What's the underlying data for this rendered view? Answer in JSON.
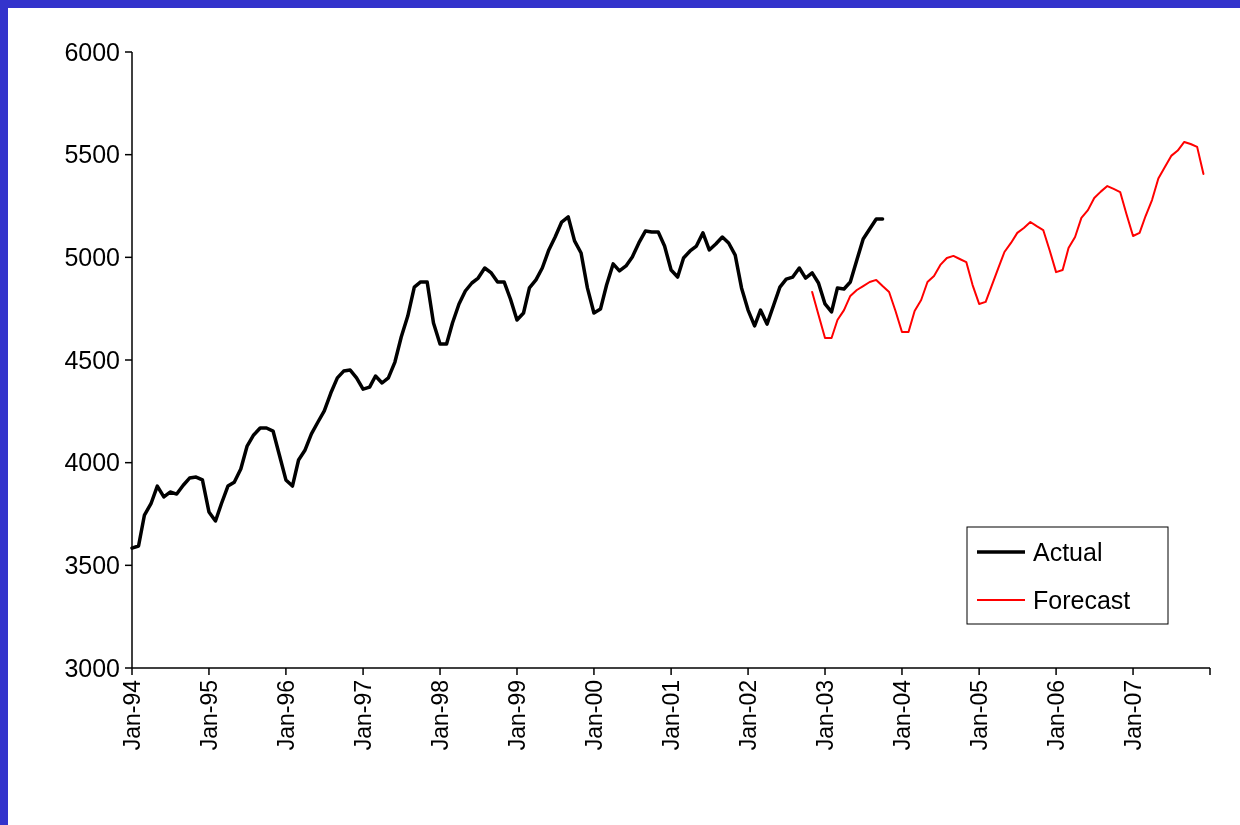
{
  "chart_data": {
    "type": "line",
    "xlim": [
      "1994-01",
      "2008-01"
    ],
    "xticks": [
      {
        "value": "1994-01",
        "label": "Jan-94"
      },
      {
        "value": "1995-01",
        "label": "Jan-95"
      },
      {
        "value": "1996-01",
        "label": "Jan-96"
      },
      {
        "value": "1997-01",
        "label": "Jan-97"
      },
      {
        "value": "1998-01",
        "label": "Jan-98"
      },
      {
        "value": "1999-01",
        "label": "Jan-99"
      },
      {
        "value": "2000-01",
        "label": "Jan-00"
      },
      {
        "value": "2001-01",
        "label": "Jan-01"
      },
      {
        "value": "2002-01",
        "label": "Jan-02"
      },
      {
        "value": "2003-01",
        "label": "Jan-03"
      },
      {
        "value": "2004-01",
        "label": "Jan-04"
      },
      {
        "value": "2005-01",
        "label": "Jan-05"
      },
      {
        "value": "2006-01",
        "label": "Jan-06"
      },
      {
        "value": "2007-01",
        "label": "Jan-07"
      },
      {
        "value": "2008-01",
        "label": null
      }
    ],
    "ylim": [
      3000,
      6000
    ],
    "yticks": [
      3000,
      3500,
      4000,
      4500,
      5000,
      5500,
      6000
    ],
    "grid": false,
    "legend": "bottom right",
    "marker": "none",
    "series": [
      {
        "name": "Actual",
        "color": "#000000",
        "x": [
          "1994-01",
          "1994-02",
          "1994-03",
          "1994-04",
          "1994-05",
          "1994-06",
          "1994-07",
          "1994-08",
          "1994-09",
          "1994-10",
          "1994-11",
          "1994-12",
          "1995-01",
          "1995-02",
          "1995-03",
          "1995-04",
          "1995-05",
          "1995-06",
          "1995-07",
          "1995-08",
          "1995-09",
          "1995-10",
          "1995-11",
          "1995-12",
          "1996-01",
          "1996-02",
          "1996-03",
          "1996-04",
          "1996-05",
          "1996-06",
          "1996-07",
          "1996-08",
          "1996-09",
          "1996-10",
          "1996-11",
          "1996-12",
          "1997-01",
          "1997-02",
          "1997-03",
          "1997-04",
          "1997-05",
          "1997-06",
          "1997-07",
          "1997-08",
          "1997-09",
          "1997-10",
          "1997-11",
          "1997-12",
          "1998-01",
          "1998-02",
          "1998-03",
          "1998-04",
          "1998-05",
          "1998-06",
          "1998-07",
          "1998-08",
          "1998-09",
          "1998-10",
          "1998-11",
          "1998-12",
          "1999-01",
          "1999-02",
          "1999-03",
          "1999-04",
          "1999-05",
          "1999-06",
          "1999-07",
          "1999-08",
          "1999-09",
          "1999-10",
          "1999-11",
          "1999-12",
          "2000-01",
          "2000-02",
          "2000-03",
          "2000-04",
          "2000-05",
          "2000-06",
          "2000-07",
          "2000-08",
          "2000-09",
          "2000-10",
          "2000-11",
          "2000-12",
          "2001-01",
          "2001-02",
          "2001-03",
          "2001-04",
          "2001-05",
          "2001-06",
          "2001-07",
          "2001-08",
          "2001-09",
          "2001-10",
          "2001-11",
          "2001-12",
          "2002-01",
          "2002-02",
          "2002-03",
          "2002-04",
          "2002-05",
          "2002-06",
          "2002-07",
          "2002-08",
          "2002-09",
          "2002-10",
          "2002-11",
          "2002-12",
          "2003-01",
          "2003-02",
          "2003-03",
          "2003-04",
          "2003-05",
          "2003-06",
          "2003-07",
          "2003-08",
          "2003-09",
          "2003-10"
        ],
        "values": [
          3584,
          3594,
          3745,
          3800,
          3886,
          3833,
          3857,
          3847,
          3890,
          3925,
          3930,
          3916,
          3760,
          3716,
          3800,
          3886,
          3905,
          3969,
          4081,
          4135,
          4169,
          4169,
          4154,
          4037,
          3916,
          3886,
          4013,
          4062,
          4140,
          4198,
          4252,
          4339,
          4413,
          4446,
          4451,
          4413,
          4358,
          4368,
          4422,
          4388,
          4413,
          4490,
          4612,
          4714,
          4855,
          4880,
          4880,
          4680,
          4578,
          4578,
          4680,
          4773,
          4836,
          4875,
          4899,
          4948,
          4924,
          4880,
          4880,
          4797,
          4695,
          4729,
          4851,
          4890,
          4948,
          5036,
          5099,
          5172,
          5197,
          5080,
          5021,
          4851,
          4729,
          4748,
          4865,
          4968,
          4934,
          4958,
          5002,
          5070,
          5128,
          5123,
          5123,
          5055,
          4938,
          4904,
          4997,
          5031,
          5055,
          5119,
          5036,
          5065,
          5099,
          5070,
          5011,
          4851,
          4743,
          4666,
          4743,
          4675,
          4763,
          4855,
          4894,
          4904,
          4948,
          4899,
          4924,
          4875,
          4773,
          4734,
          4851,
          4846,
          4880,
          4987,
          5089,
          5138,
          5187,
          5187
        ]
      },
      {
        "name": "Forecast",
        "color": "#ff0000",
        "x": [
          "2002-11",
          "2002-12",
          "2003-01",
          "2003-02",
          "2003-03",
          "2003-04",
          "2003-05",
          "2003-06",
          "2003-07",
          "2003-08",
          "2003-09",
          "2003-10",
          "2003-11",
          "2003-12",
          "2004-01",
          "2004-02",
          "2004-03",
          "2004-04",
          "2004-05",
          "2004-06",
          "2004-07",
          "2004-08",
          "2004-09",
          "2004-10",
          "2004-11",
          "2004-12",
          "2005-01",
          "2005-02",
          "2005-03",
          "2005-04",
          "2005-05",
          "2005-06",
          "2005-07",
          "2005-08",
          "2005-09",
          "2005-10",
          "2005-11",
          "2005-12",
          "2006-01",
          "2006-02",
          "2006-03",
          "2006-04",
          "2006-05",
          "2006-06",
          "2006-07",
          "2006-08",
          "2006-09",
          "2006-10",
          "2006-11",
          "2006-12",
          "2007-01",
          "2007-02",
          "2007-03",
          "2007-04",
          "2007-05",
          "2007-06",
          "2007-07",
          "2007-08",
          "2007-09",
          "2007-10",
          "2007-11",
          "2007-12"
        ],
        "values": [
          4831,
          4720,
          4607,
          4607,
          4695,
          4743,
          4812,
          4841,
          4860,
          4880,
          4890,
          4860,
          4831,
          4740,
          4636,
          4636,
          4739,
          4792,
          4880,
          4909,
          4963,
          4997,
          5007,
          4992,
          4977,
          4865,
          4773,
          4783,
          4860,
          4945,
          5026,
          5070,
          5119,
          5143,
          5172,
          5152,
          5133,
          5036,
          4928,
          4938,
          5045,
          5099,
          5192,
          5230,
          5289,
          5320,
          5347,
          5333,
          5318,
          5210,
          5104,
          5119,
          5200,
          5279,
          5384,
          5440,
          5494,
          5520,
          5562,
          5552,
          5538,
          5406
        ]
      }
    ]
  }
}
